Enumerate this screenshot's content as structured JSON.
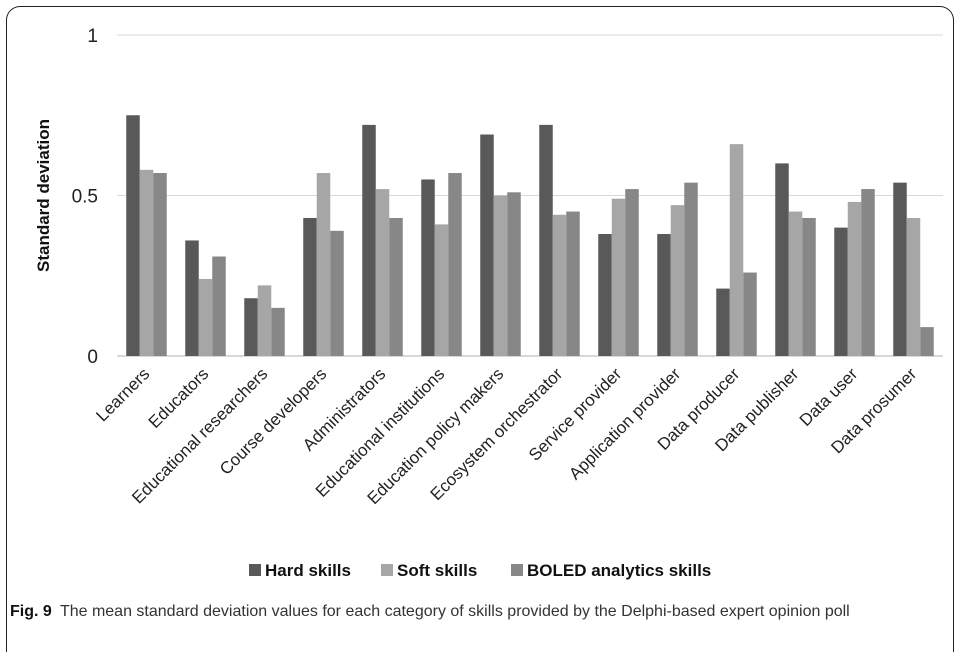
{
  "caption": {
    "label": "Fig. 9",
    "text": "The mean standard deviation values for each category of skills provided by the Delphi-based expert opinion poll"
  },
  "colors": {
    "hard": "#595959",
    "soft": "#a6a6a6",
    "boled": "#878787",
    "grid": "#d9d9d9",
    "axis": "#bfbfbf"
  },
  "chart_data": {
    "type": "bar",
    "title": "",
    "xlabel": "",
    "ylabel": "Standard deviation",
    "ylim": [
      0,
      1
    ],
    "yticks": [
      "0",
      "0.5",
      "1"
    ],
    "grid": true,
    "legend_position": "bottom",
    "categories": [
      "Learners",
      "Educators",
      "Educational researchers",
      "Course developers",
      "Administrators",
      "Educational institutions",
      "Education policy makers",
      "Ecosystem orchestrator",
      "Service provider",
      "Application provider",
      "Data producer",
      "Data publisher",
      "Data user",
      "Data prosumer"
    ],
    "series": [
      {
        "name": "Hard skills",
        "values": [
          0.75,
          0.36,
          0.18,
          0.43,
          0.72,
          0.55,
          0.69,
          0.72,
          0.38,
          0.38,
          0.21,
          0.6,
          0.4,
          0.54
        ]
      },
      {
        "name": "Soft skills",
        "values": [
          0.58,
          0.24,
          0.22,
          0.57,
          0.52,
          0.41,
          0.5,
          0.44,
          0.49,
          0.47,
          0.66,
          0.45,
          0.48,
          0.43
        ]
      },
      {
        "name": "BOLED analytics skills",
        "values": [
          0.57,
          0.31,
          0.15,
          0.39,
          0.43,
          0.57,
          0.51,
          0.45,
          0.52,
          0.54,
          0.26,
          0.43,
          0.52,
          0.09
        ]
      }
    ]
  }
}
